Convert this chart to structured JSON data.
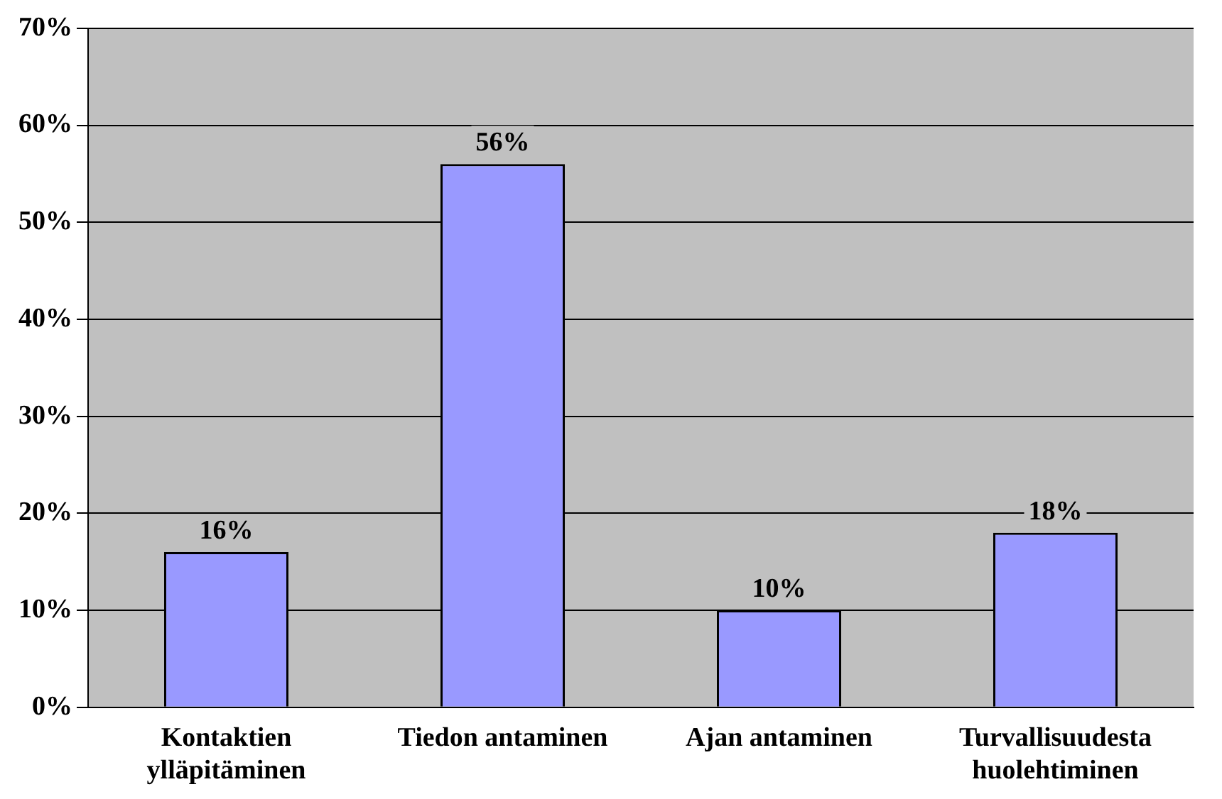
{
  "chart_data": {
    "type": "bar",
    "categories": [
      "Kontaktien ylläpitäminen",
      "Tiedon antaminen",
      "Ajan antaminen",
      "Turvallisuudesta huolehtiminen"
    ],
    "values": [
      16,
      56,
      10,
      18
    ],
    "value_labels": [
      "16%",
      "56%",
      "10%",
      "18%"
    ],
    "color": "#9999ff",
    "ylim": [
      0,
      70
    ],
    "yticks": [
      {
        "value": 0,
        "label": "0%"
      },
      {
        "value": 10,
        "label": "10%"
      },
      {
        "value": 20,
        "label": "20%"
      },
      {
        "value": 30,
        "label": "30%"
      },
      {
        "value": 40,
        "label": "40%"
      },
      {
        "value": 50,
        "label": "50%"
      },
      {
        "value": 60,
        "label": "60%"
      },
      {
        "value": 70,
        "label": "70%"
      }
    ],
    "grid": "y",
    "legend": false
  }
}
